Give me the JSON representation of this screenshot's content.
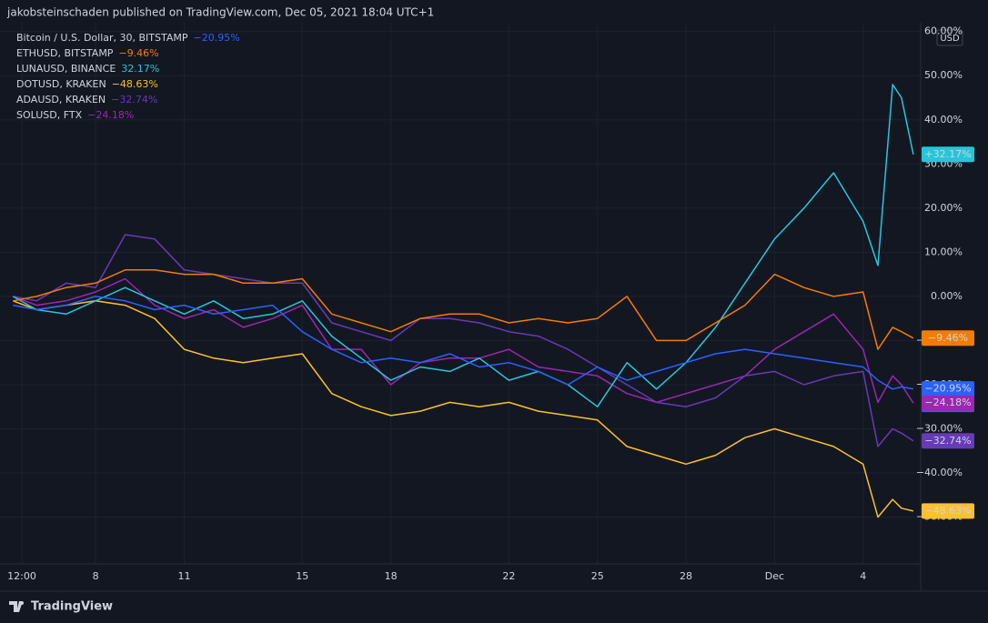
{
  "header": {
    "text": "jakobsteinschaden published on TradingView.com, Dec 05, 2021 18:04 UTC+1"
  },
  "footer": {
    "brand": "TradingView"
  },
  "chart_data": {
    "type": "line",
    "currency": "USD",
    "countdown": "25:33",
    "x": [
      5.2,
      6,
      7,
      8,
      9,
      10,
      11,
      12,
      13,
      14,
      15,
      16,
      17,
      18,
      19,
      20,
      21,
      22,
      23,
      24,
      25,
      26,
      27,
      28,
      29,
      30,
      31,
      32,
      33,
      34,
      34.5,
      35,
      35.3,
      35.7
    ],
    "xlim": [
      4.76,
      35.95
    ],
    "xticks": [
      {
        "value": 5.5,
        "label": "12:00"
      },
      8,
      11,
      15,
      18,
      22,
      25,
      28,
      {
        "value": 31,
        "label": "Dec"
      },
      {
        "value": 34,
        "label": "4"
      }
    ],
    "ylim": [
      -60.6,
      62
    ],
    "yticks": [
      {
        "value": 60,
        "label": "60.00%"
      },
      {
        "value": 50,
        "label": "50.00%"
      },
      {
        "value": 40,
        "label": "40.00%"
      },
      {
        "value": 30,
        "label": "30.00%"
      },
      {
        "value": 20,
        "label": "20.00%"
      },
      {
        "value": 10,
        "label": "10.00%"
      },
      {
        "value": 0,
        "label": "0.00%"
      },
      {
        "value": -10,
        "label": "−10.00%"
      },
      {
        "value": -20,
        "label": "−20.00%"
      },
      {
        "value": -30,
        "label": "−30.00%"
      },
      {
        "value": -40,
        "label": "−40.00%"
      },
      {
        "value": -50,
        "label": "−50.00%"
      }
    ],
    "grid": true,
    "series": [
      {
        "name": "Bitcoin / U.S. Dollar, 30, BITSTAMP",
        "color": "#2962ff",
        "legend_label": "−20.95%",
        "badge_label": "−20.95%",
        "values": [
          -2,
          -3,
          -2,
          0,
          -1,
          -3,
          -2,
          -4,
          -3,
          -2,
          -8,
          -12,
          -15,
          -14,
          -15,
          -13,
          -16,
          -15,
          -17,
          -20,
          -16,
          -19,
          -17,
          -15,
          -13,
          -12,
          -13,
          -14,
          -15,
          -16,
          -19,
          -21,
          -20.5,
          -20.95
        ]
      },
      {
        "name": "ETHUSD, BITSTAMP",
        "color": "#f57c00",
        "legend_label": "−9.46%",
        "badge_label": "−9.46%",
        "values": [
          -1,
          0,
          2,
          3,
          6,
          6,
          5,
          5,
          3,
          3,
          4,
          -4,
          -6,
          -8,
          -5,
          -4,
          -4,
          -6,
          -5,
          -6,
          -5,
          0,
          -10,
          -10,
          -6,
          -2,
          5,
          2,
          0,
          1,
          -12,
          -7,
          -8,
          -9.46
        ]
      },
      {
        "name": "LUNAUSD, BINANCE",
        "color": "#26c6da",
        "legend_label": "32.17%",
        "badge_label": "+32.17%",
        "values": [
          0,
          -3,
          -4,
          -1,
          2,
          -1,
          -4,
          -1,
          -5,
          -4,
          -1,
          -9,
          -14,
          -19,
          -16,
          -17,
          -14,
          -19,
          -17,
          -20,
          -25,
          -15,
          -21,
          -15,
          -7,
          3,
          13,
          20,
          28,
          17,
          7,
          48,
          45,
          32.17
        ]
      },
      {
        "name": "DOTUSD, KRAKEN",
        "color": "#fbc02d",
        "legend_label": "−48.63%",
        "badge_label": "−48.63%",
        "values": [
          -1,
          -3,
          -2,
          -1,
          -2,
          -5,
          -12,
          -14,
          -15,
          -14,
          -13,
          -22,
          -25,
          -27,
          -26,
          -24,
          -25,
          -24,
          -26,
          -27,
          -28,
          -34,
          -36,
          -38,
          -36,
          -32,
          -30,
          -32,
          -34,
          -38,
          -50,
          -46,
          -48,
          -48.63
        ]
      },
      {
        "name": "ADAUSD, KRAKEN",
        "color": "#673ab7",
        "legend_label": "−32.74%",
        "badge_label": "−32.74%",
        "values": [
          0,
          -1,
          3,
          2,
          14,
          13,
          6,
          5,
          4,
          3,
          3,
          -6,
          -8,
          -10,
          -5,
          -5,
          -6,
          -8,
          -9,
          -12,
          -16,
          -20,
          -24,
          -25,
          -23,
          -18,
          -17,
          -20,
          -18,
          -17,
          -34,
          -30,
          -31,
          -32.74
        ]
      },
      {
        "name": "SOLUSD, FTX",
        "color": "#9c27b0",
        "legend_label": "−24.18%",
        "badge_label": "−24.18%",
        "values": [
          0,
          -2,
          -1,
          1,
          4,
          -2,
          -5,
          -3,
          -7,
          -5,
          -2,
          -12,
          -12,
          -20,
          -15,
          -14,
          -14,
          -12,
          -16,
          -17,
          -18,
          -22,
          -24,
          -22,
          -20,
          -18,
          -12,
          -8,
          -4,
          -12,
          -24,
          -18,
          -20,
          -24.18
        ]
      }
    ]
  }
}
